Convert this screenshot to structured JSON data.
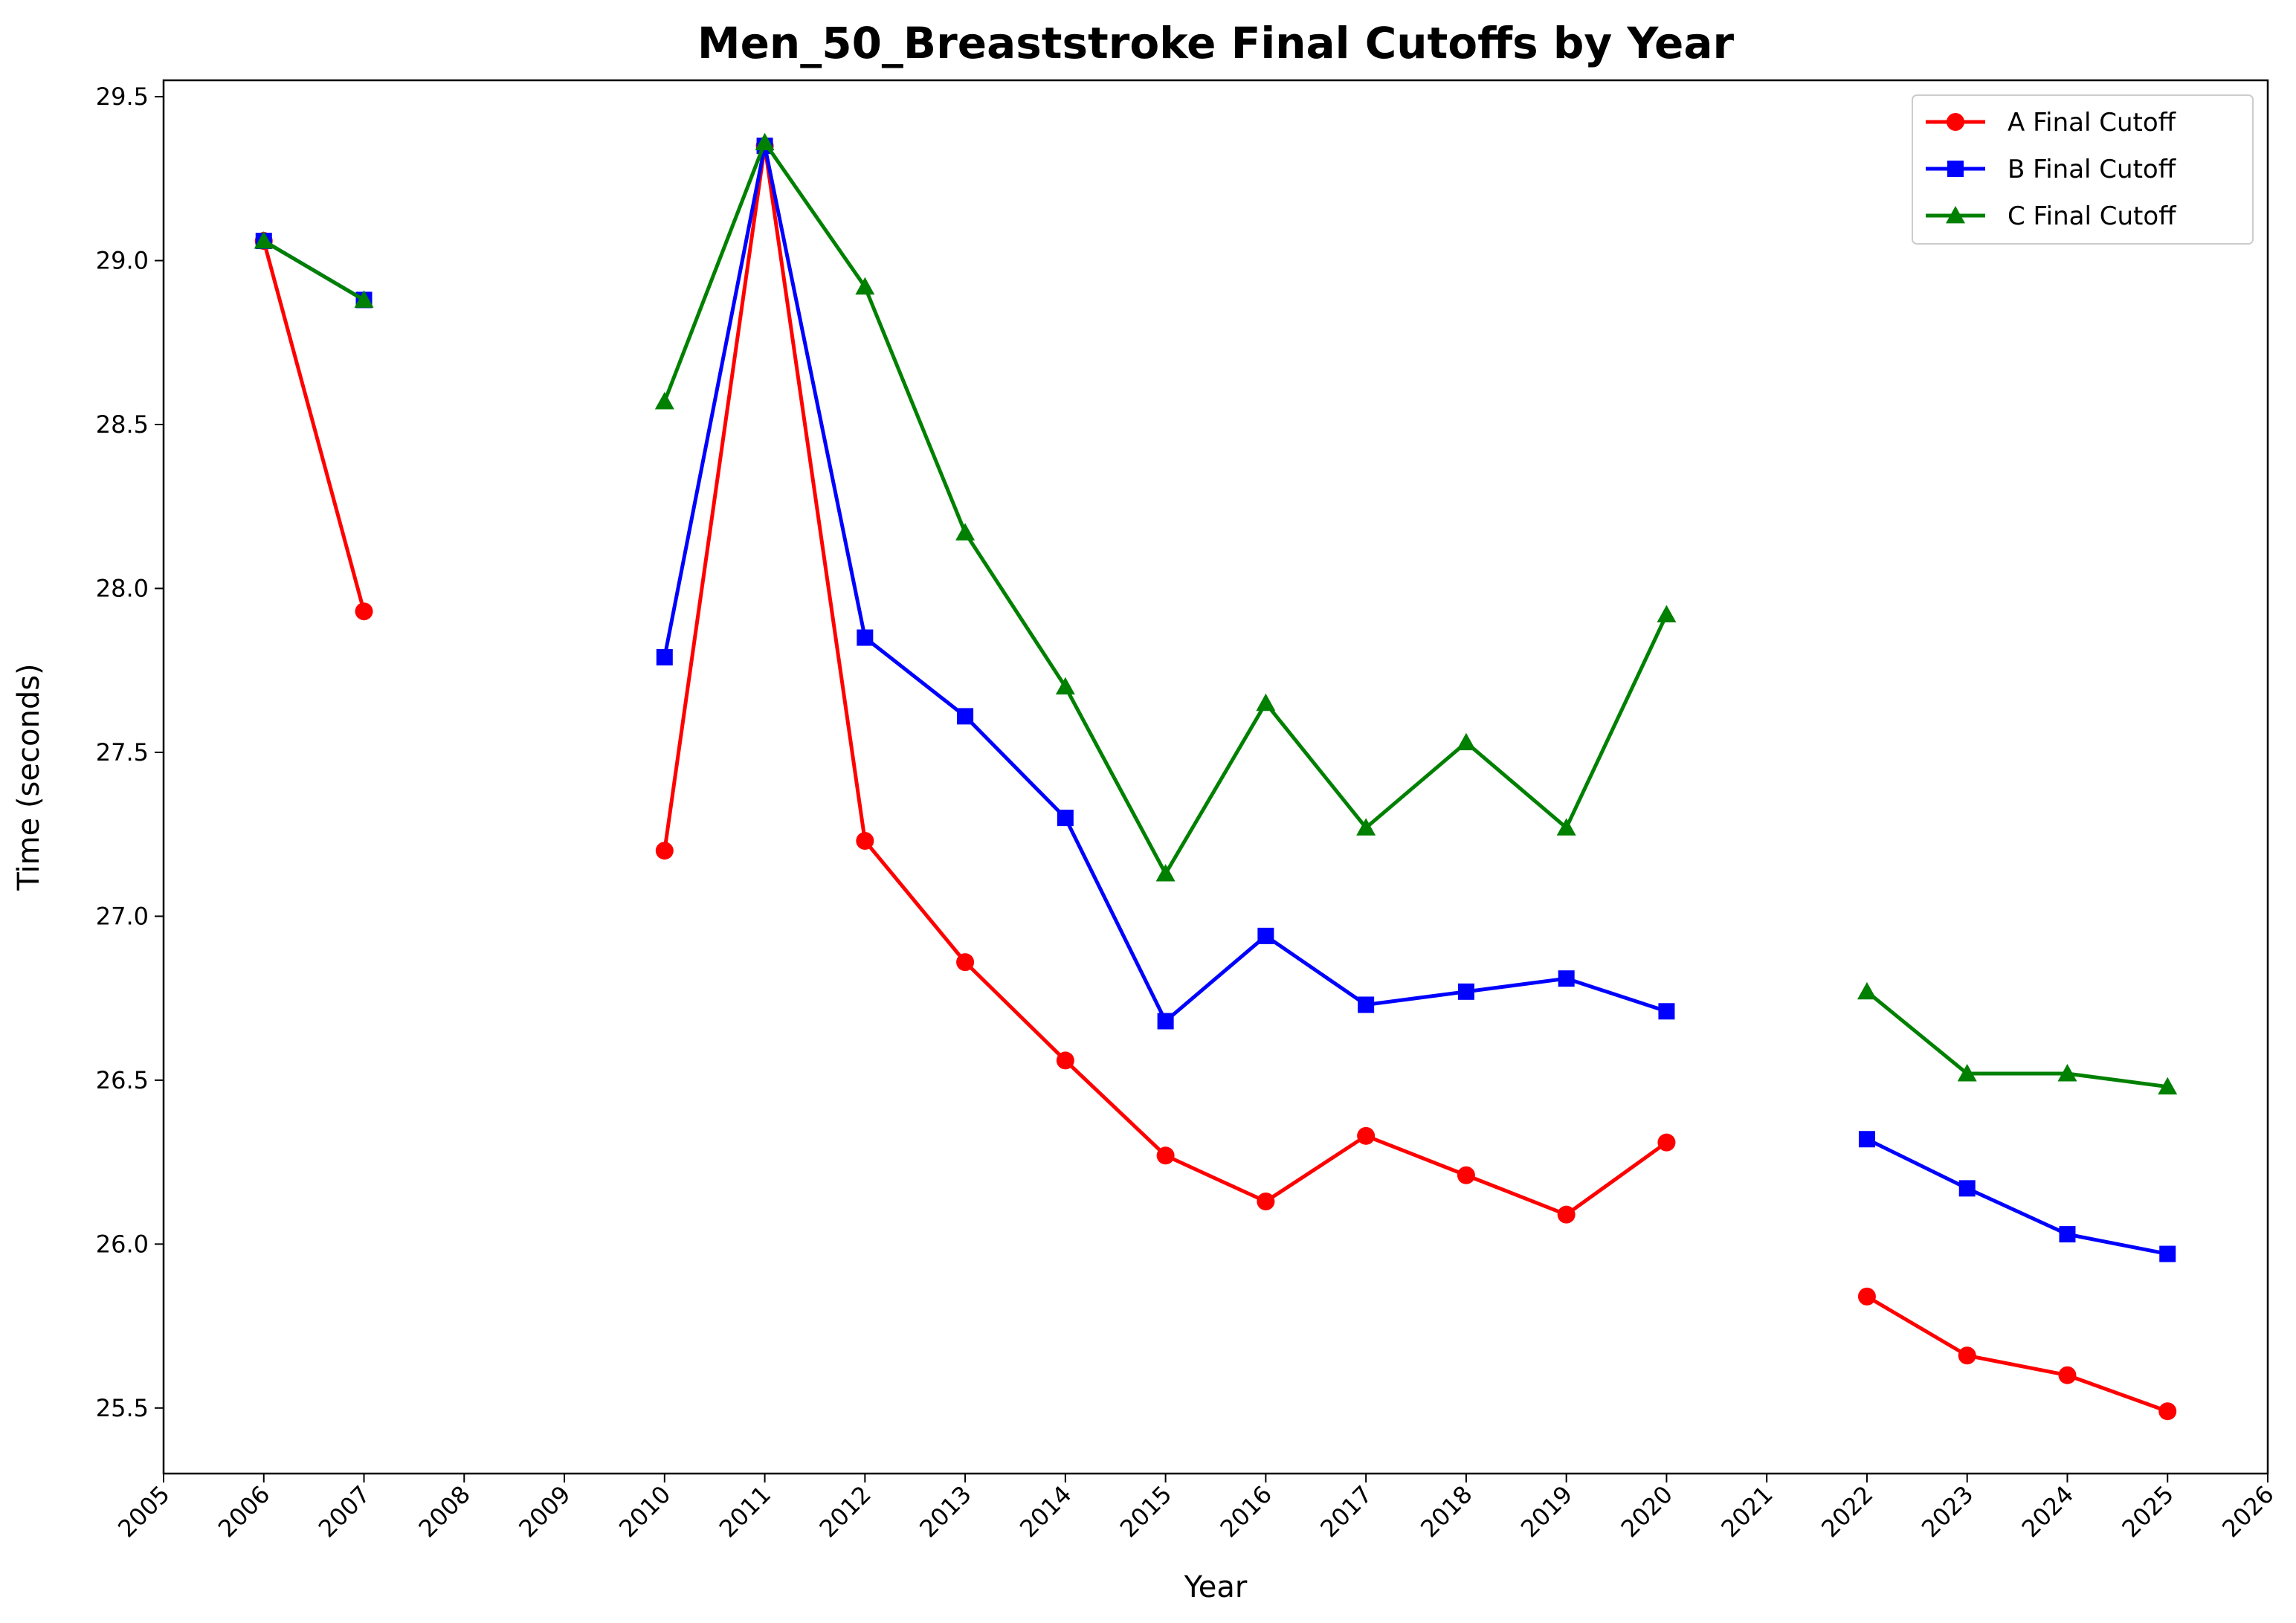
{
  "chart_data": {
    "type": "line",
    "title": "Men_50_Breaststroke Final Cutoffs by Year",
    "xlabel": "Year",
    "ylabel": "Time (seconds)",
    "xlim": [
      2005,
      2026
    ],
    "ylim": [
      25.3,
      29.55
    ],
    "x_ticks": [
      2005,
      2006,
      2007,
      2008,
      2009,
      2010,
      2011,
      2012,
      2013,
      2014,
      2015,
      2016,
      2017,
      2018,
      2019,
      2020,
      2021,
      2022,
      2023,
      2024,
      2025,
      2026
    ],
    "y_ticks": [
      25.5,
      26.0,
      26.5,
      27.0,
      27.5,
      28.0,
      28.5,
      29.0,
      29.5
    ],
    "x": [
      2006,
      2007,
      2008,
      2009,
      2010,
      2011,
      2012,
      2013,
      2014,
      2015,
      2016,
      2017,
      2018,
      2019,
      2020,
      2021,
      2022,
      2023,
      2024,
      2025
    ],
    "series": [
      {
        "name": "A Final Cutoff",
        "color": "#ff0000",
        "marker": "circle",
        "values": [
          29.06,
          27.93,
          null,
          null,
          27.2,
          29.35,
          27.23,
          26.86,
          26.56,
          26.27,
          26.13,
          26.33,
          26.21,
          26.09,
          26.31,
          null,
          25.84,
          25.66,
          25.6,
          25.49
        ]
      },
      {
        "name": "B Final Cutoff",
        "color": "#0000ff",
        "marker": "square",
        "values": [
          29.06,
          28.88,
          null,
          null,
          27.79,
          29.35,
          27.85,
          27.61,
          27.3,
          26.68,
          26.94,
          26.73,
          26.77,
          26.81,
          26.71,
          null,
          26.32,
          26.17,
          26.03,
          25.97
        ]
      },
      {
        "name": "C Final Cutoff",
        "color": "#008000",
        "marker": "triangle",
        "values": [
          29.06,
          28.88,
          null,
          null,
          28.57,
          29.36,
          28.92,
          28.17,
          27.7,
          27.13,
          27.65,
          27.27,
          27.53,
          27.27,
          27.92,
          null,
          26.77,
          26.52,
          26.52,
          26.48
        ]
      }
    ],
    "legend": {
      "position": "top-right"
    },
    "grid": false
  }
}
